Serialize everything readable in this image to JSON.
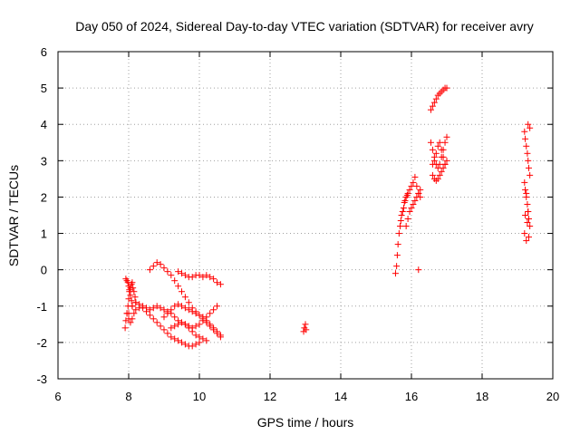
{
  "chart_data": {
    "type": "scatter",
    "title": "Day 050 of 2024, Sidereal Day-to-day VTEC variation (SDTVAR) for receiver avry",
    "xlabel": "GPS time / hours",
    "ylabel": "SDTVAR / TECUs",
    "xlim": [
      6,
      20
    ],
    "ylim": [
      -3,
      6
    ],
    "xticks": [
      "6",
      "8",
      "10",
      "12",
      "14",
      "16",
      "18",
      "20"
    ],
    "yticks": [
      "-3",
      "-2",
      "-1",
      "0",
      "1",
      "2",
      "3",
      "4",
      "5",
      "6"
    ],
    "grid": true,
    "marker": "+",
    "series": [
      {
        "name": "SDTVAR",
        "color": "#ff0000",
        "x": [
          7.9,
          7.92,
          7.95,
          7.98,
          8.0,
          8.02,
          8.05,
          8.08,
          8.1,
          8.12,
          8.15,
          8.18,
          8.2,
          7.92,
          7.95,
          7.98,
          8.0,
          8.02,
          8.05,
          8.08,
          8.1,
          7.95,
          8.0,
          8.05,
          8.1,
          8.15,
          8.2,
          8.3,
          8.4,
          8.5,
          8.6,
          8.7,
          8.8,
          8.9,
          9.0,
          9.1,
          9.2,
          9.3,
          9.4,
          9.5,
          9.6,
          9.7,
          9.8,
          9.9,
          10.0,
          10.1,
          10.2,
          10.3,
          10.4,
          10.5,
          8.6,
          8.7,
          8.8,
          8.9,
          9.0,
          9.1,
          9.2,
          9.3,
          9.4,
          9.5,
          9.6,
          9.7,
          9.8,
          9.9,
          10.0,
          10.1,
          10.2,
          10.3,
          10.4,
          10.5,
          10.6,
          8.0,
          8.1,
          8.2,
          8.3,
          8.4,
          8.5,
          8.6,
          8.7,
          8.8,
          8.9,
          9.0,
          9.1,
          9.2,
          9.3,
          9.4,
          9.5,
          9.6,
          9.7,
          9.8,
          9.9,
          10.0,
          9.4,
          9.5,
          9.6,
          9.7,
          9.8,
          9.9,
          10.0,
          10.1,
          10.2,
          10.3,
          10.4,
          10.5,
          10.6,
          9.0,
          9.1,
          9.2,
          9.3,
          9.4,
          9.5,
          9.6,
          9.7,
          9.8,
          9.9,
          10.0,
          10.1,
          10.2,
          10.3,
          10.4,
          10.5,
          10.6,
          9.2,
          9.3,
          9.4,
          9.5,
          9.6,
          9.7,
          9.8,
          9.9,
          10.0,
          10.1,
          10.2,
          12.95,
          12.97,
          13.0,
          13.02,
          15.55,
          15.58,
          15.6,
          15.62,
          15.65,
          15.68,
          15.7,
          15.72,
          15.75,
          15.78,
          15.8,
          15.82,
          15.85,
          15.88,
          15.9,
          15.95,
          16.0,
          16.05,
          16.1,
          16.15,
          16.2,
          16.25,
          15.85,
          15.9,
          15.95,
          16.0,
          16.05,
          16.1,
          16.15,
          16.2,
          16.25,
          16.2,
          16.55,
          16.6,
          16.65,
          16.7,
          16.75,
          16.8,
          16.85,
          16.9,
          16.95,
          17.0,
          16.55,
          16.6,
          16.65,
          16.7,
          16.75,
          16.8,
          16.85,
          16.9,
          16.95,
          17.0,
          16.6,
          16.65,
          16.7,
          16.75,
          16.8,
          16.85,
          16.9,
          16.95,
          17.0,
          16.6,
          16.65,
          16.7,
          16.75,
          16.8,
          16.85,
          16.9,
          16.95,
          19.2,
          19.22,
          19.25,
          19.28,
          19.3,
          19.32,
          19.35,
          19.2,
          19.22,
          19.25,
          19.28,
          19.3,
          19.32,
          19.35,
          19.2,
          19.25,
          19.3,
          19.35,
          19.25,
          19.3,
          19.22,
          19.28,
          19.32
        ],
        "y": [
          -1.6,
          -1.4,
          -1.2,
          -1.0,
          -0.8,
          -0.6,
          -0.5,
          -0.4,
          -0.35,
          -0.5,
          -0.6,
          -0.75,
          -0.9,
          -0.25,
          -0.3,
          -0.35,
          -0.45,
          -0.55,
          -0.7,
          -0.85,
          -1.0,
          -1.2,
          -1.35,
          -1.45,
          -1.35,
          -1.2,
          -1.1,
          -1.05,
          -1.0,
          -1.05,
          -1.1,
          -1.05,
          -1.0,
          -1.05,
          -1.1,
          -1.15,
          -1.2,
          -1.3,
          -1.4,
          -1.45,
          -1.5,
          -1.55,
          -1.6,
          -1.55,
          -1.5,
          -1.4,
          -1.3,
          -1.2,
          -1.1,
          -1.0,
          0.0,
          0.1,
          0.2,
          0.15,
          0.05,
          -0.05,
          -0.15,
          -0.3,
          -0.45,
          -0.6,
          -0.75,
          -0.9,
          -1.05,
          -1.15,
          -1.25,
          -1.35,
          -1.45,
          -1.55,
          -1.65,
          -1.75,
          -1.85,
          -1.2,
          -1.0,
          -0.9,
          -0.95,
          -1.05,
          -1.15,
          -1.25,
          -1.35,
          -1.45,
          -1.55,
          -1.65,
          -1.75,
          -1.85,
          -1.9,
          -1.95,
          -2.0,
          -2.05,
          -2.1,
          -2.1,
          -2.05,
          -2.0,
          -0.05,
          -0.1,
          -0.15,
          -0.2,
          -0.2,
          -0.15,
          -0.15,
          -0.2,
          -0.15,
          -0.2,
          -0.25,
          -0.35,
          -0.4,
          -1.3,
          -1.2,
          -1.1,
          -1.0,
          -0.95,
          -1.0,
          -1.05,
          -1.1,
          -1.15,
          -1.2,
          -1.25,
          -1.3,
          -1.4,
          -1.5,
          -1.6,
          -1.7,
          -1.8,
          -1.6,
          -1.55,
          -1.5,
          -1.45,
          -1.5,
          -1.6,
          -1.7,
          -1.8,
          -1.85,
          -1.9,
          -1.95,
          -1.7,
          -1.6,
          -1.5,
          -1.65,
          -0.1,
          0.1,
          0.4,
          0.7,
          1.0,
          1.2,
          1.35,
          1.5,
          1.6,
          1.7,
          1.85,
          1.9,
          2.0,
          2.05,
          2.1,
          2.2,
          2.3,
          2.4,
          2.55,
          2.3,
          2.1,
          2.0,
          1.2,
          1.4,
          1.6,
          1.7,
          1.8,
          1.9,
          2.0,
          2.1,
          2.2,
          0.0,
          4.4,
          4.5,
          4.6,
          4.7,
          4.8,
          4.85,
          4.9,
          4.95,
          5.0,
          5.0,
          3.5,
          3.3,
          3.1,
          2.9,
          2.8,
          2.9,
          3.1,
          3.3,
          3.5,
          3.65,
          2.6,
          2.5,
          2.45,
          2.5,
          2.6,
          2.7,
          2.8,
          2.9,
          3.0,
          2.9,
          3.0,
          3.2,
          3.4,
          3.5,
          3.3,
          3.1,
          2.9,
          3.8,
          3.6,
          3.4,
          3.2,
          3.0,
          2.8,
          2.6,
          2.4,
          2.2,
          2.0,
          1.8,
          1.6,
          1.4,
          1.2,
          1.0,
          0.8,
          4.0,
          3.9,
          2.1,
          1.6,
          1.5,
          1.3,
          0.9
        ]
      }
    ]
  }
}
